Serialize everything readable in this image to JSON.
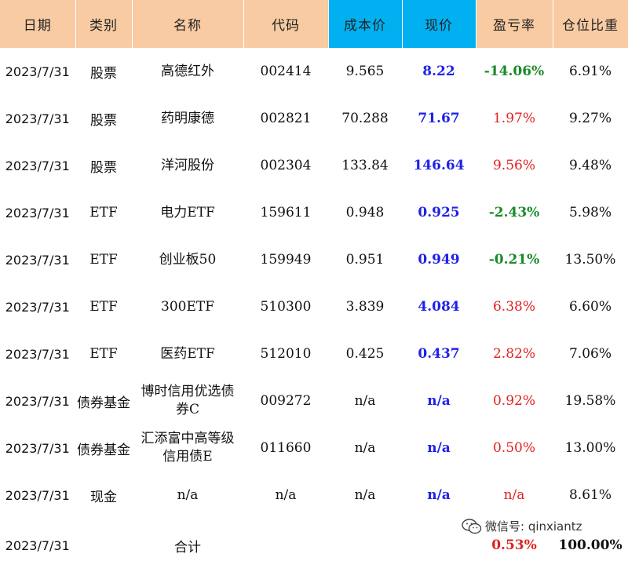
{
  "headers": [
    "日期",
    "类别",
    "名称",
    "代码",
    "成本价",
    "现价",
    "盈亏率",
    "仓位比重"
  ],
  "colors": {
    "header_bg": "#f8cba3",
    "header_highlight": "#00b0f0",
    "price_blue": "#1f22e8",
    "profit_red": "#e02020",
    "loss_green": "#1a8a2a"
  },
  "rows": [
    {
      "date": "2023/7/31",
      "type": "股票",
      "name": "高德红外",
      "code": "002414",
      "cost": "9.565",
      "price": "8.22",
      "pnl": "-14.06%",
      "weight": "6.91%"
    },
    {
      "date": "2023/7/31",
      "type": "股票",
      "name": "药明康德",
      "code": "002821",
      "cost": "70.288",
      "price": "71.67",
      "pnl": "1.97%",
      "weight": "9.27%"
    },
    {
      "date": "2023/7/31",
      "type": "股票",
      "name": "洋河股份",
      "code": "002304",
      "cost": "133.84",
      "price": "146.64",
      "pnl": "9.56%",
      "weight": "9.48%"
    },
    {
      "date": "2023/7/31",
      "type": "ETF",
      "name": "电力ETF",
      "code": "159611",
      "cost": "0.948",
      "price": "0.925",
      "pnl": "-2.43%",
      "weight": "5.98%"
    },
    {
      "date": "2023/7/31",
      "type": "ETF",
      "name": "创业板50",
      "code": "159949",
      "cost": "0.951",
      "price": "0.949",
      "pnl": "-0.21%",
      "weight": "13.50%"
    },
    {
      "date": "2023/7/31",
      "type": "ETF",
      "name": "300ETF",
      "code": "510300",
      "cost": "3.839",
      "price": "4.084",
      "pnl": "6.38%",
      "weight": "6.60%"
    },
    {
      "date": "2023/7/31",
      "type": "ETF",
      "name": "医药ETF",
      "code": "512010",
      "cost": "0.425",
      "price": "0.437",
      "pnl": "2.82%",
      "weight": "7.06%"
    },
    {
      "date": "2023/7/31",
      "type": "债券基金",
      "name": "博时信用优选债券C",
      "code": "009272",
      "cost": "n/a",
      "price": "n/a",
      "pnl": "0.92%",
      "weight": "19.58%"
    },
    {
      "date": "2023/7/31",
      "type": "债券基金",
      "name": "汇添富中高等级信用债E",
      "code": "011660",
      "cost": "n/a",
      "price": "n/a",
      "pnl": "0.50%",
      "weight": "13.00%"
    },
    {
      "date": "2023/7/31",
      "type": "现金",
      "name": "n/a",
      "code": "n/a",
      "cost": "n/a",
      "price": "n/a",
      "pnl": "n/a",
      "weight": "8.61%"
    }
  ],
  "total": {
    "date": "2023/7/31",
    "label": "合计",
    "pnl": "0.53%",
    "weight": "100.00%"
  },
  "watermark": {
    "text": "微信号: qinxiantz",
    "icon": "wechat-icon"
  }
}
